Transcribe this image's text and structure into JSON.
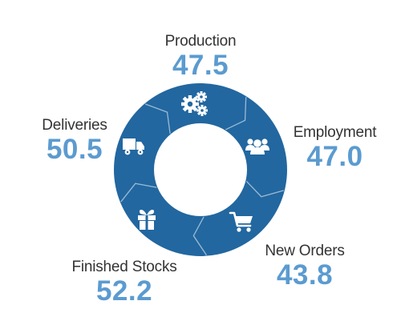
{
  "colors": {
    "ring": "#2267A0",
    "value": "#5B9BD0",
    "label": "#333333",
    "icon": "#ffffff"
  },
  "segments": [
    {
      "id": "production",
      "label": "Production",
      "value": "47.5",
      "icon": "gears-icon"
    },
    {
      "id": "employment",
      "label": "Employment",
      "value": "47.0",
      "icon": "people-icon"
    },
    {
      "id": "new_orders",
      "label": "New Orders",
      "value": "43.8",
      "icon": "shopping-cart-icon"
    },
    {
      "id": "finished_stocks",
      "label": "Finished Stocks",
      "value": "52.2",
      "icon": "gift-box-icon"
    },
    {
      "id": "deliveries",
      "label": "Deliveries",
      "value": "50.5",
      "icon": "delivery-truck-icon"
    }
  ]
}
